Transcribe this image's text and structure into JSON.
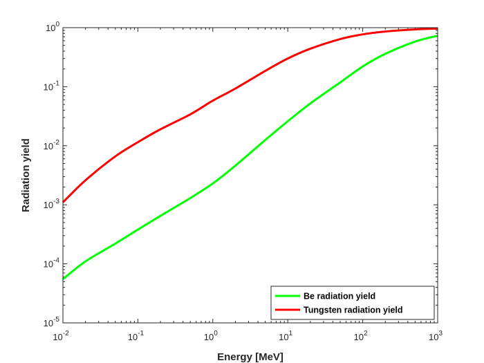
{
  "chart_data": {
    "type": "line",
    "xscale": "log",
    "yscale": "log",
    "xlabel": "Energy [MeV]",
    "ylabel": "Radiation yield",
    "xlim": [
      0.01,
      1000
    ],
    "ylim": [
      1e-05,
      1
    ],
    "x_ticks": [
      {
        "value": 0.01,
        "base": "10",
        "exp": "-2"
      },
      {
        "value": 0.1,
        "base": "10",
        "exp": "-1"
      },
      {
        "value": 1,
        "base": "10",
        "exp": "0"
      },
      {
        "value": 10,
        "base": "10",
        "exp": "1"
      },
      {
        "value": 100,
        "base": "10",
        "exp": "2"
      },
      {
        "value": 1000,
        "base": "10",
        "exp": "3"
      }
    ],
    "y_ticks": [
      {
        "value": 1e-05,
        "base": "10",
        "exp": "-5"
      },
      {
        "value": 0.0001,
        "base": "10",
        "exp": "-4"
      },
      {
        "value": 0.001,
        "base": "10",
        "exp": "-3"
      },
      {
        "value": 0.01,
        "base": "10",
        "exp": "-2"
      },
      {
        "value": 0.1,
        "base": "10",
        "exp": "-1"
      },
      {
        "value": 1,
        "base": "10",
        "exp": "0"
      }
    ],
    "legend_position": "bottom-right",
    "series": [
      {
        "name": "Be radiation yield",
        "color": "#00ff00",
        "x": [
          0.01,
          0.02,
          0.05,
          0.1,
          0.2,
          0.5,
          1,
          2,
          5,
          10,
          20,
          50,
          100,
          200,
          500,
          1000
        ],
        "y": [
          5.5e-05,
          0.00011,
          0.00022,
          0.00038,
          0.00065,
          0.0013,
          0.0023,
          0.0046,
          0.0125,
          0.026,
          0.052,
          0.118,
          0.22,
          0.36,
          0.58,
          0.73
        ]
      },
      {
        "name": "Tungsten radiation yield",
        "color": "#ff0000",
        "x": [
          0.01,
          0.02,
          0.05,
          0.1,
          0.2,
          0.5,
          1,
          2,
          5,
          10,
          20,
          50,
          100,
          200,
          500,
          1000
        ],
        "y": [
          0.0011,
          0.0026,
          0.0066,
          0.0115,
          0.019,
          0.034,
          0.058,
          0.093,
          0.185,
          0.3,
          0.44,
          0.64,
          0.77,
          0.86,
          0.935,
          0.965
        ]
      }
    ]
  }
}
